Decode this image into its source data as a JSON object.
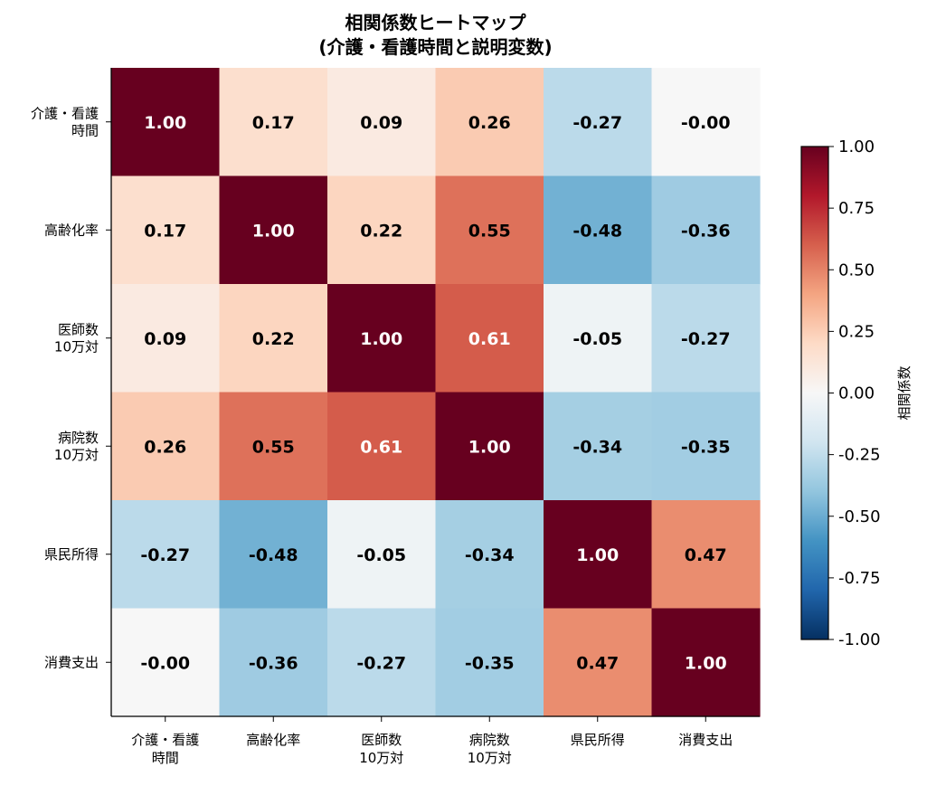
{
  "chart_data": {
    "type": "heatmap",
    "title": [
      "相関係数ヒートマップ",
      "(介護・看護時間と説明変数)"
    ],
    "labels": [
      [
        "介護・看護",
        "時間"
      ],
      [
        "高齢化率"
      ],
      [
        "医師数",
        "10万対"
      ],
      [
        "病院数",
        "10万対"
      ],
      [
        "県民所得"
      ],
      [
        "消費支出"
      ]
    ],
    "values": [
      [
        1.0,
        0.17,
        0.09,
        0.26,
        -0.27,
        -0.0
      ],
      [
        0.17,
        1.0,
        0.22,
        0.55,
        -0.48,
        -0.36
      ],
      [
        0.09,
        0.22,
        1.0,
        0.61,
        -0.05,
        -0.27
      ],
      [
        0.26,
        0.55,
        0.61,
        1.0,
        -0.34,
        -0.35
      ],
      [
        -0.27,
        -0.48,
        -0.05,
        -0.34,
        1.0,
        0.47
      ],
      [
        -0.0,
        -0.36,
        -0.27,
        -0.35,
        0.47,
        1.0
      ]
    ],
    "value_format": "0.00",
    "colormap": "RdBu_r",
    "vmin": -1.0,
    "vmax": 1.0,
    "colorbar": {
      "label": "相関係数",
      "ticks": [
        "1.00",
        "0.75",
        "0.50",
        "0.25",
        "0.00",
        "-0.25",
        "-0.50",
        "-0.75",
        "-1.00"
      ],
      "tick_values": [
        1.0,
        0.75,
        0.5,
        0.25,
        0.0,
        -0.25,
        -0.5,
        -0.75,
        -1.0
      ]
    }
  }
}
